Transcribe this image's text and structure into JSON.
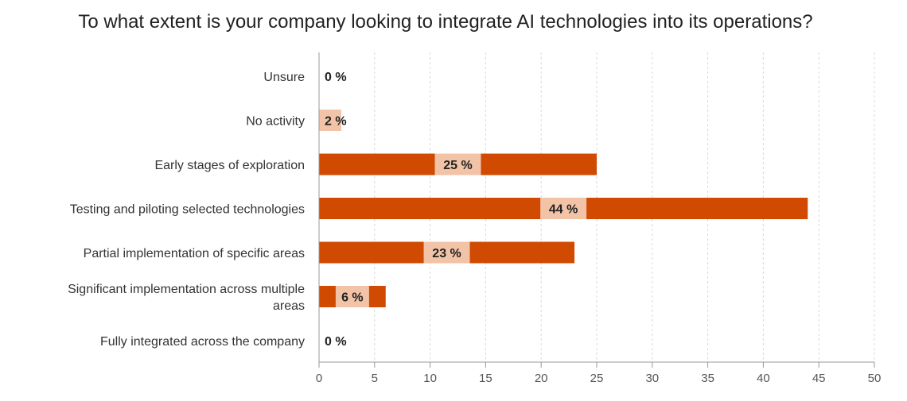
{
  "chart_data": {
    "type": "bar",
    "orientation": "horizontal",
    "title": "To what extent is your company looking to integrate AI technologies into its operations?",
    "categories": [
      "Unsure",
      "No activity",
      "Early stages of exploration",
      "Testing and piloting selected technologies",
      "Partial implementation of specific areas",
      "Significant implementation across multiple areas",
      "Fully integrated across the company"
    ],
    "values": [
      0,
      2,
      25,
      44,
      23,
      6,
      0
    ],
    "value_labels": [
      "0 %",
      "2 %",
      "25 %",
      "44 %",
      "23 %",
      "6 %",
      "0 %"
    ],
    "xlim": [
      0,
      50
    ],
    "xticks": [
      0,
      5,
      10,
      15,
      20,
      25,
      30,
      35,
      40,
      45,
      50
    ],
    "grid": true,
    "colors": {
      "bar": "#d04a02",
      "small_bar": "#f2c3a7",
      "label_bg": "#f2c3a7",
      "grid": "#d9d9d9",
      "axis": "#999999"
    }
  }
}
